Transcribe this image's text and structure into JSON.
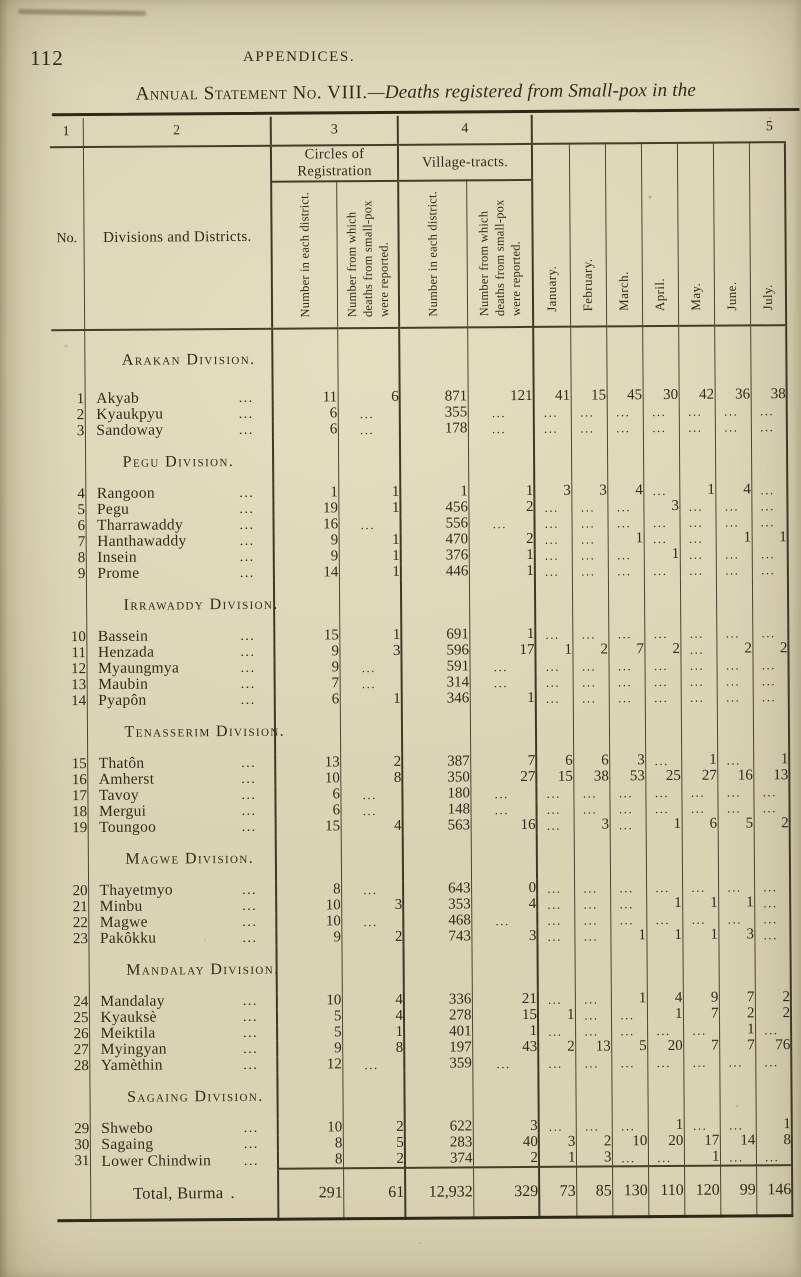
{
  "page": {
    "page_number": "112",
    "running_header": "APPENDICES.",
    "title_prefix": "Annual Statement No. VIII.",
    "title_italic": "—Deaths registered from Small-pox in the"
  },
  "table": {
    "column_numbers": [
      "1",
      "2",
      "3",
      "4",
      "5"
    ],
    "leader": "...",
    "headers": {
      "no": "No.",
      "divisions": "Divisions and Districts.",
      "circles_group": "Circles of Registration",
      "villages_group": "Village-tracts.",
      "sub_count": "Number in each district.",
      "sub_reported": "Number from which deaths from small-pox were reported.",
      "months": [
        "January.",
        "February.",
        "March.",
        "April.",
        "May.",
        "June.",
        "July."
      ]
    },
    "sections": [
      {
        "division": "Arakan Division.",
        "rows": [
          {
            "no": "1",
            "district": "Akyab",
            "c_num": "11",
            "c_rep": "6",
            "v_num": "871",
            "v_rep": "121",
            "months": [
              "41",
              "15",
              "45",
              "30",
              "42",
              "36",
              "38"
            ]
          },
          {
            "no": "2",
            "district": "Kyaukpyu",
            "c_num": "6",
            "c_rep": "...",
            "v_num": "355",
            "v_rep": "...",
            "months": [
              "...",
              "...",
              "...",
              "...",
              "...",
              "...",
              "..."
            ]
          },
          {
            "no": "3",
            "district": "Sandoway",
            "c_num": "6",
            "c_rep": "...",
            "v_num": "178",
            "v_rep": "...",
            "months": [
              "...",
              "...",
              "...",
              "...",
              "...",
              "...",
              "..."
            ]
          }
        ]
      },
      {
        "division": "Pegu Division.",
        "rows": [
          {
            "no": "4",
            "district": "Rangoon",
            "c_num": "1",
            "c_rep": "1",
            "v_num": "1",
            "v_rep": "1",
            "months": [
              "3",
              "3",
              "4",
              "...",
              "1",
              "4",
              "..."
            ]
          },
          {
            "no": "5",
            "district": "Pegu",
            "c_num": "19",
            "c_rep": "1",
            "v_num": "456",
            "v_rep": "2",
            "months": [
              "...",
              "...",
              "...",
              "3",
              "...",
              "...",
              "..."
            ]
          },
          {
            "no": "6",
            "district": "Tharrawaddy",
            "c_num": "16",
            "c_rep": "...",
            "v_num": "556",
            "v_rep": "...",
            "months": [
              "...",
              "...",
              "...",
              "...",
              "...",
              "...",
              "..."
            ]
          },
          {
            "no": "7",
            "district": "Hanthawaddy",
            "c_num": "9",
            "c_rep": "1",
            "v_num": "470",
            "v_rep": "2",
            "months": [
              "...",
              "...",
              "1",
              "...",
              "...",
              "1",
              "1"
            ]
          },
          {
            "no": "8",
            "district": "Insein",
            "c_num": "9",
            "c_rep": "1",
            "v_num": "376",
            "v_rep": "1",
            "months": [
              "...",
              "...",
              "...",
              "1",
              "...",
              "...",
              "..."
            ]
          },
          {
            "no": "9",
            "district": "Prome",
            "c_num": "14",
            "c_rep": "1",
            "v_num": "446",
            "v_rep": "1",
            "months": [
              "...",
              "...",
              "...",
              "...",
              "...",
              "...",
              "..."
            ]
          }
        ]
      },
      {
        "division": "Irrawaddy Division.",
        "rows": [
          {
            "no": "10",
            "district": "Bassein",
            "c_num": "15",
            "c_rep": "1",
            "v_num": "691",
            "v_rep": "1",
            "months": [
              "...",
              "...",
              "...",
              "...",
              "...",
              "...",
              "..."
            ]
          },
          {
            "no": "11",
            "district": "Henzada",
            "c_num": "9",
            "c_rep": "3",
            "v_num": "596",
            "v_rep": "17",
            "months": [
              "1",
              "2",
              "7",
              "2",
              "...",
              "2",
              "2"
            ]
          },
          {
            "no": "12",
            "district": "Myaungmya",
            "c_num": "9",
            "c_rep": "...",
            "v_num": "591",
            "v_rep": "...",
            "months": [
              "...",
              "...",
              "...",
              "...",
              "...",
              "...",
              "..."
            ]
          },
          {
            "no": "13",
            "district": "Maubin",
            "c_num": "7",
            "c_rep": "...",
            "v_num": "314",
            "v_rep": "...",
            "months": [
              "...",
              "...",
              "...",
              "...",
              "...",
              "...",
              "..."
            ]
          },
          {
            "no": "14",
            "district": "Pyapôn",
            "c_num": "6",
            "c_rep": "1",
            "v_num": "346",
            "v_rep": "1",
            "months": [
              "...",
              "...",
              "...",
              "...",
              "...",
              "...",
              "..."
            ]
          }
        ]
      },
      {
        "division": "Tenasserim Division.",
        "rows": [
          {
            "no": "15",
            "district": "Thatôn",
            "c_num": "13",
            "c_rep": "2",
            "v_num": "387",
            "v_rep": "7",
            "months": [
              "6",
              "6",
              "3",
              "...",
              "1",
              "...",
              "1"
            ]
          },
          {
            "no": "16",
            "district": "Amherst",
            "c_num": "10",
            "c_rep": "8",
            "v_num": "350",
            "v_rep": "27",
            "months": [
              "15",
              "38",
              "53",
              "25",
              "27",
              "16",
              "13"
            ]
          },
          {
            "no": "17",
            "district": "Tavoy",
            "c_num": "6",
            "c_rep": "...",
            "v_num": "180",
            "v_rep": "...",
            "months": [
              "...",
              "...",
              "...",
              "...",
              "...",
              "...",
              "..."
            ]
          },
          {
            "no": "18",
            "district": "Mergui",
            "c_num": "6",
            "c_rep": "...",
            "v_num": "148",
            "v_rep": "...",
            "months": [
              "...",
              "...",
              "...",
              "...",
              "...",
              "...",
              "..."
            ]
          },
          {
            "no": "19",
            "district": "Toungoo",
            "c_num": "15",
            "c_rep": "4",
            "v_num": "563",
            "v_rep": "16",
            "months": [
              "...",
              "3",
              "...",
              "1",
              "6",
              "5",
              "2"
            ]
          }
        ]
      },
      {
        "division": "Magwe Division.",
        "rows": [
          {
            "no": "20",
            "district": "Thayetmyo",
            "c_num": "8",
            "c_rep": "...",
            "v_num": "643",
            "v_rep": "0",
            "months": [
              "...",
              "...",
              "...",
              "...",
              "...",
              "...",
              "..."
            ]
          },
          {
            "no": "21",
            "district": "Minbu",
            "c_num": "10",
            "c_rep": "3",
            "v_num": "353",
            "v_rep": "4",
            "months": [
              "...",
              "...",
              "...",
              "1",
              "1",
              "1",
              "..."
            ]
          },
          {
            "no": "22",
            "district": "Magwe",
            "c_num": "10",
            "c_rep": "...",
            "v_num": "468",
            "v_rep": "...",
            "months": [
              "...",
              "...",
              "...",
              "...",
              "...",
              "...",
              "..."
            ]
          },
          {
            "no": "23",
            "district": "Pakôkku",
            "c_num": "9",
            "c_rep": "2",
            "v_num": "743",
            "v_rep": "3",
            "months": [
              "...",
              "...",
              "1",
              "1",
              "1",
              "3",
              "..."
            ]
          }
        ]
      },
      {
        "division": "Mandalay Division.",
        "rows": [
          {
            "no": "24",
            "district": "Mandalay",
            "c_num": "10",
            "c_rep": "4",
            "v_num": "336",
            "v_rep": "21",
            "months": [
              "...",
              "...",
              "1",
              "4",
              "9",
              "7",
              "2"
            ]
          },
          {
            "no": "25",
            "district": "Kyauksè",
            "c_num": "5",
            "c_rep": "4",
            "v_num": "278",
            "v_rep": "15",
            "months": [
              "1",
              "...",
              "...",
              "1",
              "7",
              "2",
              "2"
            ]
          },
          {
            "no": "26",
            "district": "Meiktila",
            "c_num": "5",
            "c_rep": "1",
            "v_num": "401",
            "v_rep": "1",
            "months": [
              "...",
              "...",
              "...",
              "...",
              "...",
              "1",
              "..."
            ]
          },
          {
            "no": "27",
            "district": "Myingyan",
            "c_num": "9",
            "c_rep": "8",
            "v_num": "197",
            "v_rep": "43",
            "months": [
              "2",
              "13",
              "5",
              "20",
              "7",
              "7",
              "76"
            ]
          },
          {
            "no": "28",
            "district": "Yamèthin",
            "c_num": "12",
            "c_rep": "...",
            "v_num": "359",
            "v_rep": "...",
            "months": [
              "...",
              "...",
              "...",
              "...",
              "...",
              "...",
              "..."
            ]
          }
        ]
      },
      {
        "division": "Sagaing Division.",
        "rows": [
          {
            "no": "29",
            "district": "Shwebo",
            "c_num": "10",
            "c_rep": "2",
            "v_num": "622",
            "v_rep": "3",
            "months": [
              "...",
              "...",
              "...",
              "1",
              "...",
              "...",
              "1"
            ]
          },
          {
            "no": "30",
            "district": "Sagaing",
            "c_num": "8",
            "c_rep": "5",
            "v_num": "283",
            "v_rep": "40",
            "months": [
              "3",
              "2",
              "10",
              "20",
              "17",
              "14",
              "8"
            ]
          },
          {
            "no": "31",
            "district": "Lower Chindwin",
            "c_num": "8",
            "c_rep": "2",
            "v_num": "374",
            "v_rep": "2",
            "months": [
              "1",
              "3",
              "...",
              "...",
              "1",
              "...",
              "..."
            ]
          }
        ]
      }
    ],
    "total": {
      "label": "Total, Burma",
      "dot": ".",
      "c_num": "291",
      "c_rep": "61",
      "v_num": "12,932",
      "v_rep": "329",
      "months": [
        "73",
        "85",
        "130",
        "110",
        "120",
        "99",
        "146"
      ]
    }
  }
}
